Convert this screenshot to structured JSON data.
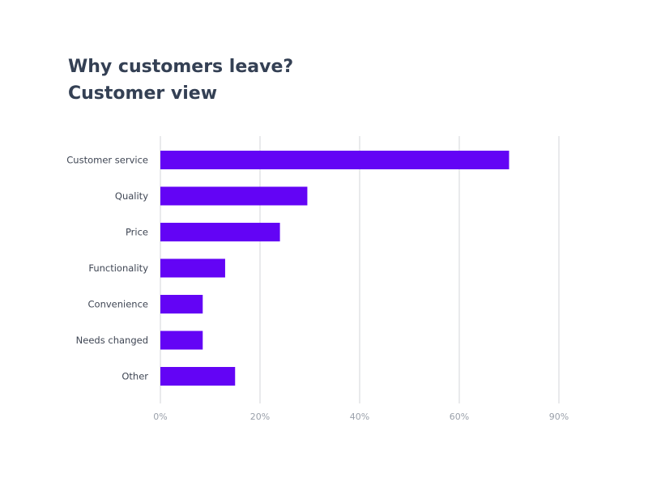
{
  "chart_data": {
    "type": "bar",
    "orientation": "horizontal",
    "title": "Why customers leave?",
    "subtitle": "Customer view",
    "categories": [
      "Customer service",
      "Quality",
      "Price",
      "Functionality",
      "Convenience",
      "Needs changed",
      "Other"
    ],
    "values": [
      70,
      29.5,
      24,
      13,
      8.5,
      8.5,
      15
    ],
    "x_ticks": [
      "0%",
      "20%",
      "40%",
      "60%",
      "90%"
    ],
    "bar_color": "#6304f5",
    "grid": true,
    "legend": "none"
  }
}
